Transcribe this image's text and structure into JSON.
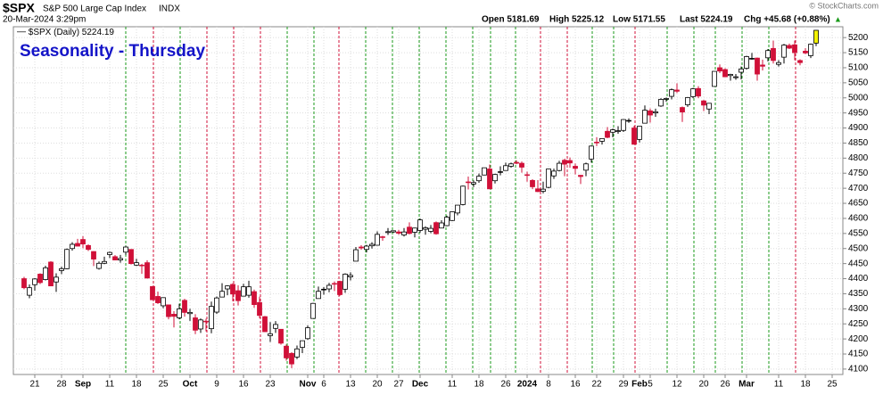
{
  "chart_data": {
    "type": "candlestick",
    "symbol": "$SPX",
    "name": "S&P 500 Large Cap Index",
    "exchange": "INDX",
    "datetime": "20-Mar-2024 3:29pm",
    "quote": [
      "Open 5181.69",
      "High 5225.12",
      "Low 5171.55",
      "Last 5224.19",
      "Chg +45.68 (+0.88%)"
    ],
    "arrow": "▲",
    "credit": "© StockCharts.com",
    "title": "Seasonality - Thursday",
    "legend": "$SPX (Daily) 5224.19",
    "up_color": "#000000",
    "down_color": "#d01038",
    "last_color": "#f2f200",
    "title_color": "#1414c8",
    "ylim": [
      4082,
      5236
    ],
    "yticks": [
      4100,
      4150,
      4200,
      4250,
      4300,
      4350,
      4400,
      4450,
      4500,
      4550,
      4600,
      4650,
      4700,
      4750,
      4800,
      4850,
      4900,
      4950,
      5000,
      5050,
      5100,
      5150,
      5200
    ],
    "grid": true,
    "categories": [
      null,
      null,
      "21",
      null,
      null,
      null,
      null,
      "28",
      null,
      null,
      null,
      "Sep",
      null,
      null,
      null,
      null,
      "11",
      null,
      null,
      null,
      null,
      "18",
      null,
      null,
      null,
      null,
      "25",
      null,
      null,
      null,
      null,
      "Oct",
      null,
      null,
      null,
      null,
      "9",
      null,
      null,
      null,
      null,
      "16",
      null,
      null,
      null,
      null,
      "23",
      null,
      null,
      null,
      null,
      null,
      null,
      "Nov",
      null,
      null,
      "6",
      null,
      null,
      null,
      null,
      "13",
      null,
      null,
      null,
      null,
      "20",
      null,
      null,
      null,
      "27",
      null,
      null,
      null,
      "Dec",
      null,
      null,
      null,
      null,
      null,
      "11",
      null,
      null,
      null,
      null,
      "18",
      null,
      null,
      null,
      null,
      "26",
      null,
      null,
      null,
      "2024",
      null,
      null,
      null,
      "8",
      null,
      null,
      null,
      null,
      "16",
      null,
      null,
      null,
      "22",
      null,
      null,
      null,
      null,
      "29",
      null,
      null,
      "Feb",
      null,
      "5",
      null,
      null,
      null,
      null,
      "12",
      null,
      null,
      null,
      null,
      "20",
      null,
      null,
      null,
      "26",
      null,
      null,
      null,
      "Mar",
      null,
      null,
      null,
      null,
      null,
      "11",
      null,
      null,
      null,
      null,
      "18",
      null,
      null,
      null,
      null,
      "25"
    ],
    "candles": [
      [
        4400,
        4406,
        4365,
        4370
      ],
      [
        4345,
        4381,
        4335,
        4370
      ],
      [
        4380,
        4402,
        4360,
        4399
      ],
      [
        4415,
        4418,
        4382,
        4387
      ],
      [
        4397,
        4443,
        4394,
        4436
      ],
      [
        4455,
        4458,
        4375,
        4376
      ],
      [
        4389,
        4418,
        4356,
        4405
      ],
      [
        4427,
        4440,
        4415,
        4433
      ],
      [
        4433,
        4500,
        4431,
        4497
      ],
      [
        4500,
        4521,
        4493,
        4514
      ],
      [
        4517,
        4532,
        4507,
        4508
      ],
      [
        4530,
        4541,
        4501,
        4515
      ],
      [
        4510,
        4514,
        4492,
        4497
      ],
      [
        4490,
        4491,
        4442,
        4465
      ],
      [
        4434,
        4457,
        4430,
        4451
      ],
      [
        4451,
        4473,
        4448,
        4457
      ],
      [
        4480,
        4490,
        4468,
        4487
      ],
      [
        4473,
        4478,
        4461,
        4462
      ],
      [
        4462,
        4479,
        4453,
        4467
      ],
      [
        4488,
        4508,
        4479,
        4505
      ],
      [
        4497,
        4497,
        4447,
        4450
      ],
      [
        4445,
        4466,
        4442,
        4453
      ],
      [
        4445,
        4449,
        4416,
        4443
      ],
      [
        4453,
        4461,
        4401,
        4402
      ],
      [
        4374,
        4375,
        4329,
        4330
      ],
      [
        4341,
        4357,
        4316,
        4320
      ],
      [
        4310,
        4338,
        4302,
        4337
      ],
      [
        4313,
        4313,
        4265,
        4274
      ],
      [
        4282,
        4292,
        4238,
        4275
      ],
      [
        4270,
        4317,
        4265,
        4300
      ],
      [
        4328,
        4333,
        4274,
        4288
      ],
      [
        4284,
        4300,
        4260,
        4288
      ],
      [
        4270,
        4282,
        4216,
        4229
      ],
      [
        4233,
        4268,
        4220,
        4263
      ],
      [
        4259,
        4267,
        4225,
        4258
      ],
      [
        4234,
        4324,
        4219,
        4308
      ],
      [
        4289,
        4341,
        4283,
        4336
      ],
      [
        4339,
        4385,
        4339,
        4358
      ],
      [
        4366,
        4378,
        4345,
        4376
      ],
      [
        4381,
        4385,
        4325,
        4349
      ],
      [
        4360,
        4378,
        4311,
        4327
      ],
      [
        4342,
        4383,
        4342,
        4373
      ],
      [
        4345,
        4393,
        4337,
        4373
      ],
      [
        4357,
        4364,
        4303,
        4314
      ],
      [
        4321,
        4340,
        4269,
        4278
      ],
      [
        4274,
        4276,
        4223,
        4224
      ],
      [
        4211,
        4256,
        4190,
        4217
      ],
      [
        4235,
        4259,
        4220,
        4248
      ],
      [
        4232,
        4233,
        4181,
        4186
      ],
      [
        4176,
        4182,
        4128,
        4137
      ],
      [
        4152,
        4156,
        4103,
        4117
      ],
      [
        4140,
        4178,
        4133,
        4167
      ],
      [
        4172,
        4194,
        4153,
        4194
      ],
      [
        4201,
        4245,
        4197,
        4237
      ],
      [
        4268,
        4320,
        4268,
        4318
      ],
      [
        4334,
        4374,
        4334,
        4358
      ],
      [
        4364,
        4372,
        4347,
        4365
      ],
      [
        4366,
        4386,
        4355,
        4378
      ],
      [
        4384,
        4391,
        4359,
        4383
      ],
      [
        4391,
        4393,
        4343,
        4347
      ],
      [
        4365,
        4418,
        4353,
        4415
      ],
      [
        4406,
        4421,
        4394,
        4411
      ],
      [
        4458,
        4505,
        4458,
        4496
      ],
      [
        4505,
        4511,
        4496,
        4502
      ],
      [
        4497,
        4512,
        4487,
        4508
      ],
      [
        4509,
        4521,
        4500,
        4514
      ],
      [
        4511,
        4557,
        4510,
        4547
      ],
      [
        4539,
        4542,
        4526,
        4538
      ],
      [
        4553,
        4568,
        4545,
        4556
      ],
      [
        4555,
        4560,
        4552,
        4559
      ],
      [
        4555,
        4562,
        4546,
        4551
      ],
      [
        4545,
        4568,
        4540,
        4555
      ],
      [
        4571,
        4587,
        4547,
        4550
      ],
      [
        4554,
        4569,
        4537,
        4568
      ],
      [
        4560,
        4599,
        4553,
        4595
      ],
      [
        4564,
        4574,
        4546,
        4569
      ],
      [
        4557,
        4578,
        4551,
        4567
      ],
      [
        4586,
        4590,
        4546,
        4549
      ],
      [
        4568,
        4594,
        4568,
        4585
      ],
      [
        4576,
        4609,
        4574,
        4604
      ],
      [
        4593,
        4623,
        4591,
        4622
      ],
      [
        4618,
        4644,
        4610,
        4644
      ],
      [
        4646,
        4709,
        4643,
        4707
      ],
      [
        4721,
        4739,
        4696,
        4720
      ],
      [
        4714,
        4726,
        4704,
        4719
      ],
      [
        4725,
        4749,
        4718,
        4740
      ],
      [
        4744,
        4768,
        4743,
        4768
      ],
      [
        4764,
        4779,
        4698,
        4698
      ],
      [
        4725,
        4748,
        4716,
        4746
      ],
      [
        4754,
        4773,
        4743,
        4755
      ],
      [
        4759,
        4785,
        4759,
        4775
      ],
      [
        4773,
        4785,
        4768,
        4781
      ],
      [
        4786,
        4793,
        4780,
        4783
      ],
      [
        4783,
        4789,
        4752,
        4770
      ],
      [
        4745,
        4755,
        4722,
        4743
      ],
      [
        4726,
        4730,
        4697,
        4705
      ],
      [
        4698,
        4727,
        4687,
        4689
      ],
      [
        4690,
        4722,
        4683,
        4697
      ],
      [
        4703,
        4764,
        4700,
        4764
      ],
      [
        4741,
        4765,
        4731,
        4757
      ],
      [
        4759,
        4791,
        4756,
        4783
      ],
      [
        4793,
        4798,
        4740,
        4780
      ],
      [
        4792,
        4802,
        4768,
        4784
      ],
      [
        4773,
        4782,
        4746,
        4766
      ],
      [
        4743,
        4744,
        4714,
        4739
      ],
      [
        4760,
        4785,
        4740,
        4781
      ],
      [
        4797,
        4842,
        4785,
        4840
      ],
      [
        4853,
        4869,
        4840,
        4851
      ],
      [
        4856,
        4866,
        4845,
        4865
      ],
      [
        4889,
        4903,
        4866,
        4869
      ],
      [
        4886,
        4898,
        4869,
        4894
      ],
      [
        4888,
        4906,
        4881,
        4891
      ],
      [
        4892,
        4929,
        4887,
        4928
      ],
      [
        4925,
        4932,
        4917,
        4925
      ],
      [
        4900,
        4907,
        4846,
        4846
      ],
      [
        4862,
        4906,
        4852,
        4906
      ],
      [
        4916,
        4975,
        4916,
        4959
      ],
      [
        4957,
        4965,
        4918,
        4943
      ],
      [
        4950,
        4964,
        4937,
        4954
      ],
      [
        4973,
        4999,
        4970,
        4995
      ],
      [
        4995,
        5001,
        4987,
        4998
      ],
      [
        5005,
        5031,
        4995,
        5027
      ],
      [
        5026,
        5048,
        5016,
        5022
      ],
      [
        4968,
        4971,
        4920,
        4953
      ],
      [
        4977,
        5003,
        4970,
        5001
      ],
      [
        5004,
        5033,
        4999,
        5030
      ],
      [
        5031,
        5039,
        4999,
        5006
      ],
      [
        4990,
        4993,
        4956,
        4976
      ],
      [
        4963,
        4983,
        4946,
        4982
      ],
      [
        5038,
        5088,
        5038,
        5088
      ],
      [
        5100,
        5111,
        5082,
        5089
      ],
      [
        5094,
        5098,
        5069,
        5070
      ],
      [
        5074,
        5080,
        5057,
        5078
      ],
      [
        5067,
        5079,
        5060,
        5070
      ],
      [
        5085,
        5104,
        5061,
        5096
      ],
      [
        5098,
        5140,
        5094,
        5137
      ],
      [
        5130,
        5149,
        5127,
        5131
      ],
      [
        5132,
        5134,
        5057,
        5079
      ],
      [
        5109,
        5127,
        5091,
        5105
      ],
      [
        5133,
        5162,
        5121,
        5157
      ],
      [
        5164,
        5190,
        5114,
        5124
      ],
      [
        5111,
        5125,
        5104,
        5117
      ],
      [
        5135,
        5179,
        5114,
        5175
      ],
      [
        5174,
        5180,
        5162,
        5165
      ],
      [
        5176,
        5190,
        5125,
        5150
      ],
      [
        5124,
        5128,
        5108,
        5117
      ],
      [
        5155,
        5165,
        5145,
        5149
      ],
      [
        5140,
        5180,
        5132,
        5178
      ],
      [
        5181.69,
        5225.12,
        5171.55,
        5224.19
      ],
      null,
      null,
      null
    ]
  }
}
